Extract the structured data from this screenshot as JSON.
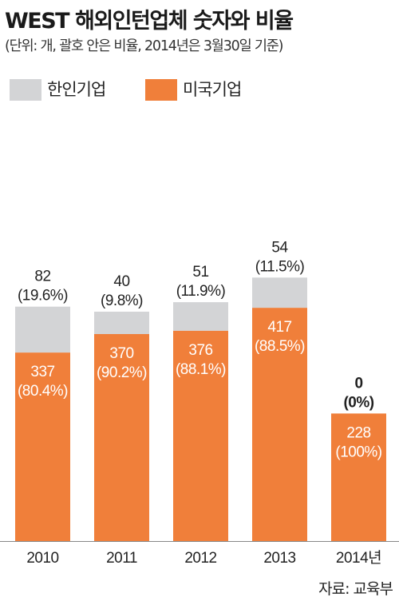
{
  "title": "WEST 해외인턴업체 숫자와 비율",
  "subtitle": "(단위: 개, 괄호 안은 비율, 2014년은 3월30일 기준)",
  "source": "자료: 교육부",
  "colors": {
    "korean": "#d3d4d6",
    "american": "#f07f3a",
    "label_on_bar": "#ffffff",
    "label_above": "#222222"
  },
  "legend": [
    {
      "label": "한인기업",
      "color": "#d3d4d6"
    },
    {
      "label": "미국기업",
      "color": "#f07f3a"
    }
  ],
  "chart_data": {
    "type": "bar",
    "stacked": true,
    "categories": [
      "2010",
      "2011",
      "2012",
      "2013",
      "2014년"
    ],
    "series": [
      {
        "name": "미국기업",
        "values": [
          337,
          370,
          376,
          417,
          228
        ],
        "labels": [
          "(80.4%)",
          "(90.2%)",
          "(88.1%)",
          "(88.5%)",
          "(100%)"
        ]
      },
      {
        "name": "한인기업",
        "values": [
          82,
          40,
          51,
          54,
          0
        ],
        "labels": [
          "(19.6%)",
          "(9.8%)",
          "(11.9%)",
          "(11.5%)",
          "(0%)"
        ]
      }
    ],
    "grid": false,
    "legend_position": "top-left"
  }
}
